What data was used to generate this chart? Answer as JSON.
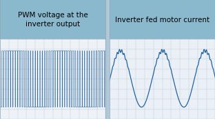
{
  "title_left": "PWM voltage at the\ninverter output",
  "title_right": "Inverter fed motor current",
  "header_bg": "#8ab8cc",
  "header_text_color": "#000000",
  "plot_bg": "#eef2f6",
  "plot_bg2": "#eaf0f5",
  "grid_color": "#c0d0dc",
  "line_color": "#1a5c9a",
  "fig_bg": "#b0c8d8",
  "header_fontsize": 7.5,
  "border_color": "#90a8b8"
}
